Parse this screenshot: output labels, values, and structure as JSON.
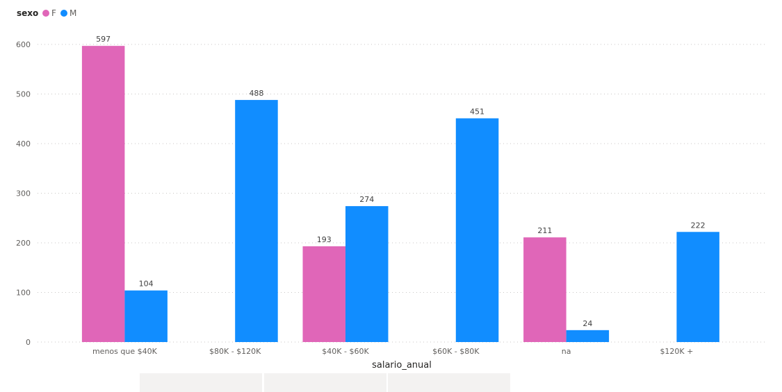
{
  "chart_data": {
    "type": "bar",
    "categories": [
      "menos que $40K",
      "$80K - $120K",
      "$40K - $60K",
      "$60K - $80K",
      "na",
      "$120K +"
    ],
    "series": [
      {
        "name": "F",
        "color": "#e66c37",
        "values": [
          597,
          null,
          193,
          null,
          211,
          null
        ]
      },
      {
        "name": "M",
        "color": "#118dff",
        "values": [
          104,
          488,
          274,
          451,
          24,
          222
        ]
      }
    ],
    "legend_title": "sexo",
    "xlabel": "salario_anual",
    "ylabel": "",
    "ylim": [
      0,
      600
    ],
    "yticks": [
      0,
      100,
      200,
      300,
      400,
      500,
      600
    ],
    "grid": true,
    "legend_position": "top-left",
    "data_labels": true
  },
  "colors": {
    "F": "#e066b8",
    "M": "#118dff",
    "grid": "#c8c6c4"
  }
}
